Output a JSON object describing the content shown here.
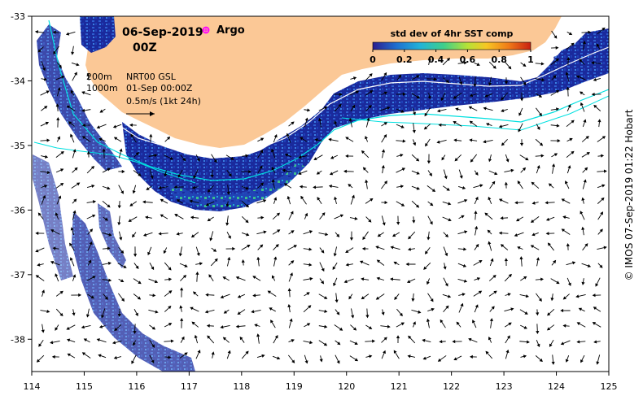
{
  "title": {
    "date": "06-Sep-2019",
    "time": "00Z"
  },
  "legend_argo": "Argo",
  "isobath_labels": {
    "shallow": "200m",
    "deep": "1000m"
  },
  "current_info": {
    "line1": "NRT00 GSL",
    "line2": "01-Sep 00:00Z",
    "line3": "0.5m/s (1kt 24h)"
  },
  "colorbar": {
    "title": "std dev of 4hr SST comp",
    "ticks": [
      "0",
      "0.2",
      "0.4",
      "0.6",
      "0.8",
      "1"
    ],
    "colors": [
      "#2a1d8f",
      "#1f6fd0",
      "#22b3d8",
      "#3fcf8a",
      "#b6e236",
      "#f7c623",
      "#f07b18",
      "#c81f12"
    ]
  },
  "axes": {
    "x_ticks": [
      "114",
      "115",
      "116",
      "117",
      "118",
      "119",
      "120",
      "121",
      "122",
      "123",
      "124",
      "125"
    ],
    "y_ticks": [
      "-33",
      "-34",
      "-35",
      "-36",
      "-37",
      "-38"
    ],
    "x_range": [
      114,
      125
    ],
    "y_range": [
      -38.5,
      -33
    ]
  },
  "copyright": "© IMOS 07-Sep-2019 01:22 Hobart",
  "colors": {
    "land": "#fbc896",
    "ocean": "#ffffff",
    "sst_dark": "#1a2a9c",
    "sst_mid": "#2e5fd0",
    "isobath_200": "#ffffff",
    "isobath_1000": "#00e0e0",
    "argo": "#ff00ff"
  }
}
